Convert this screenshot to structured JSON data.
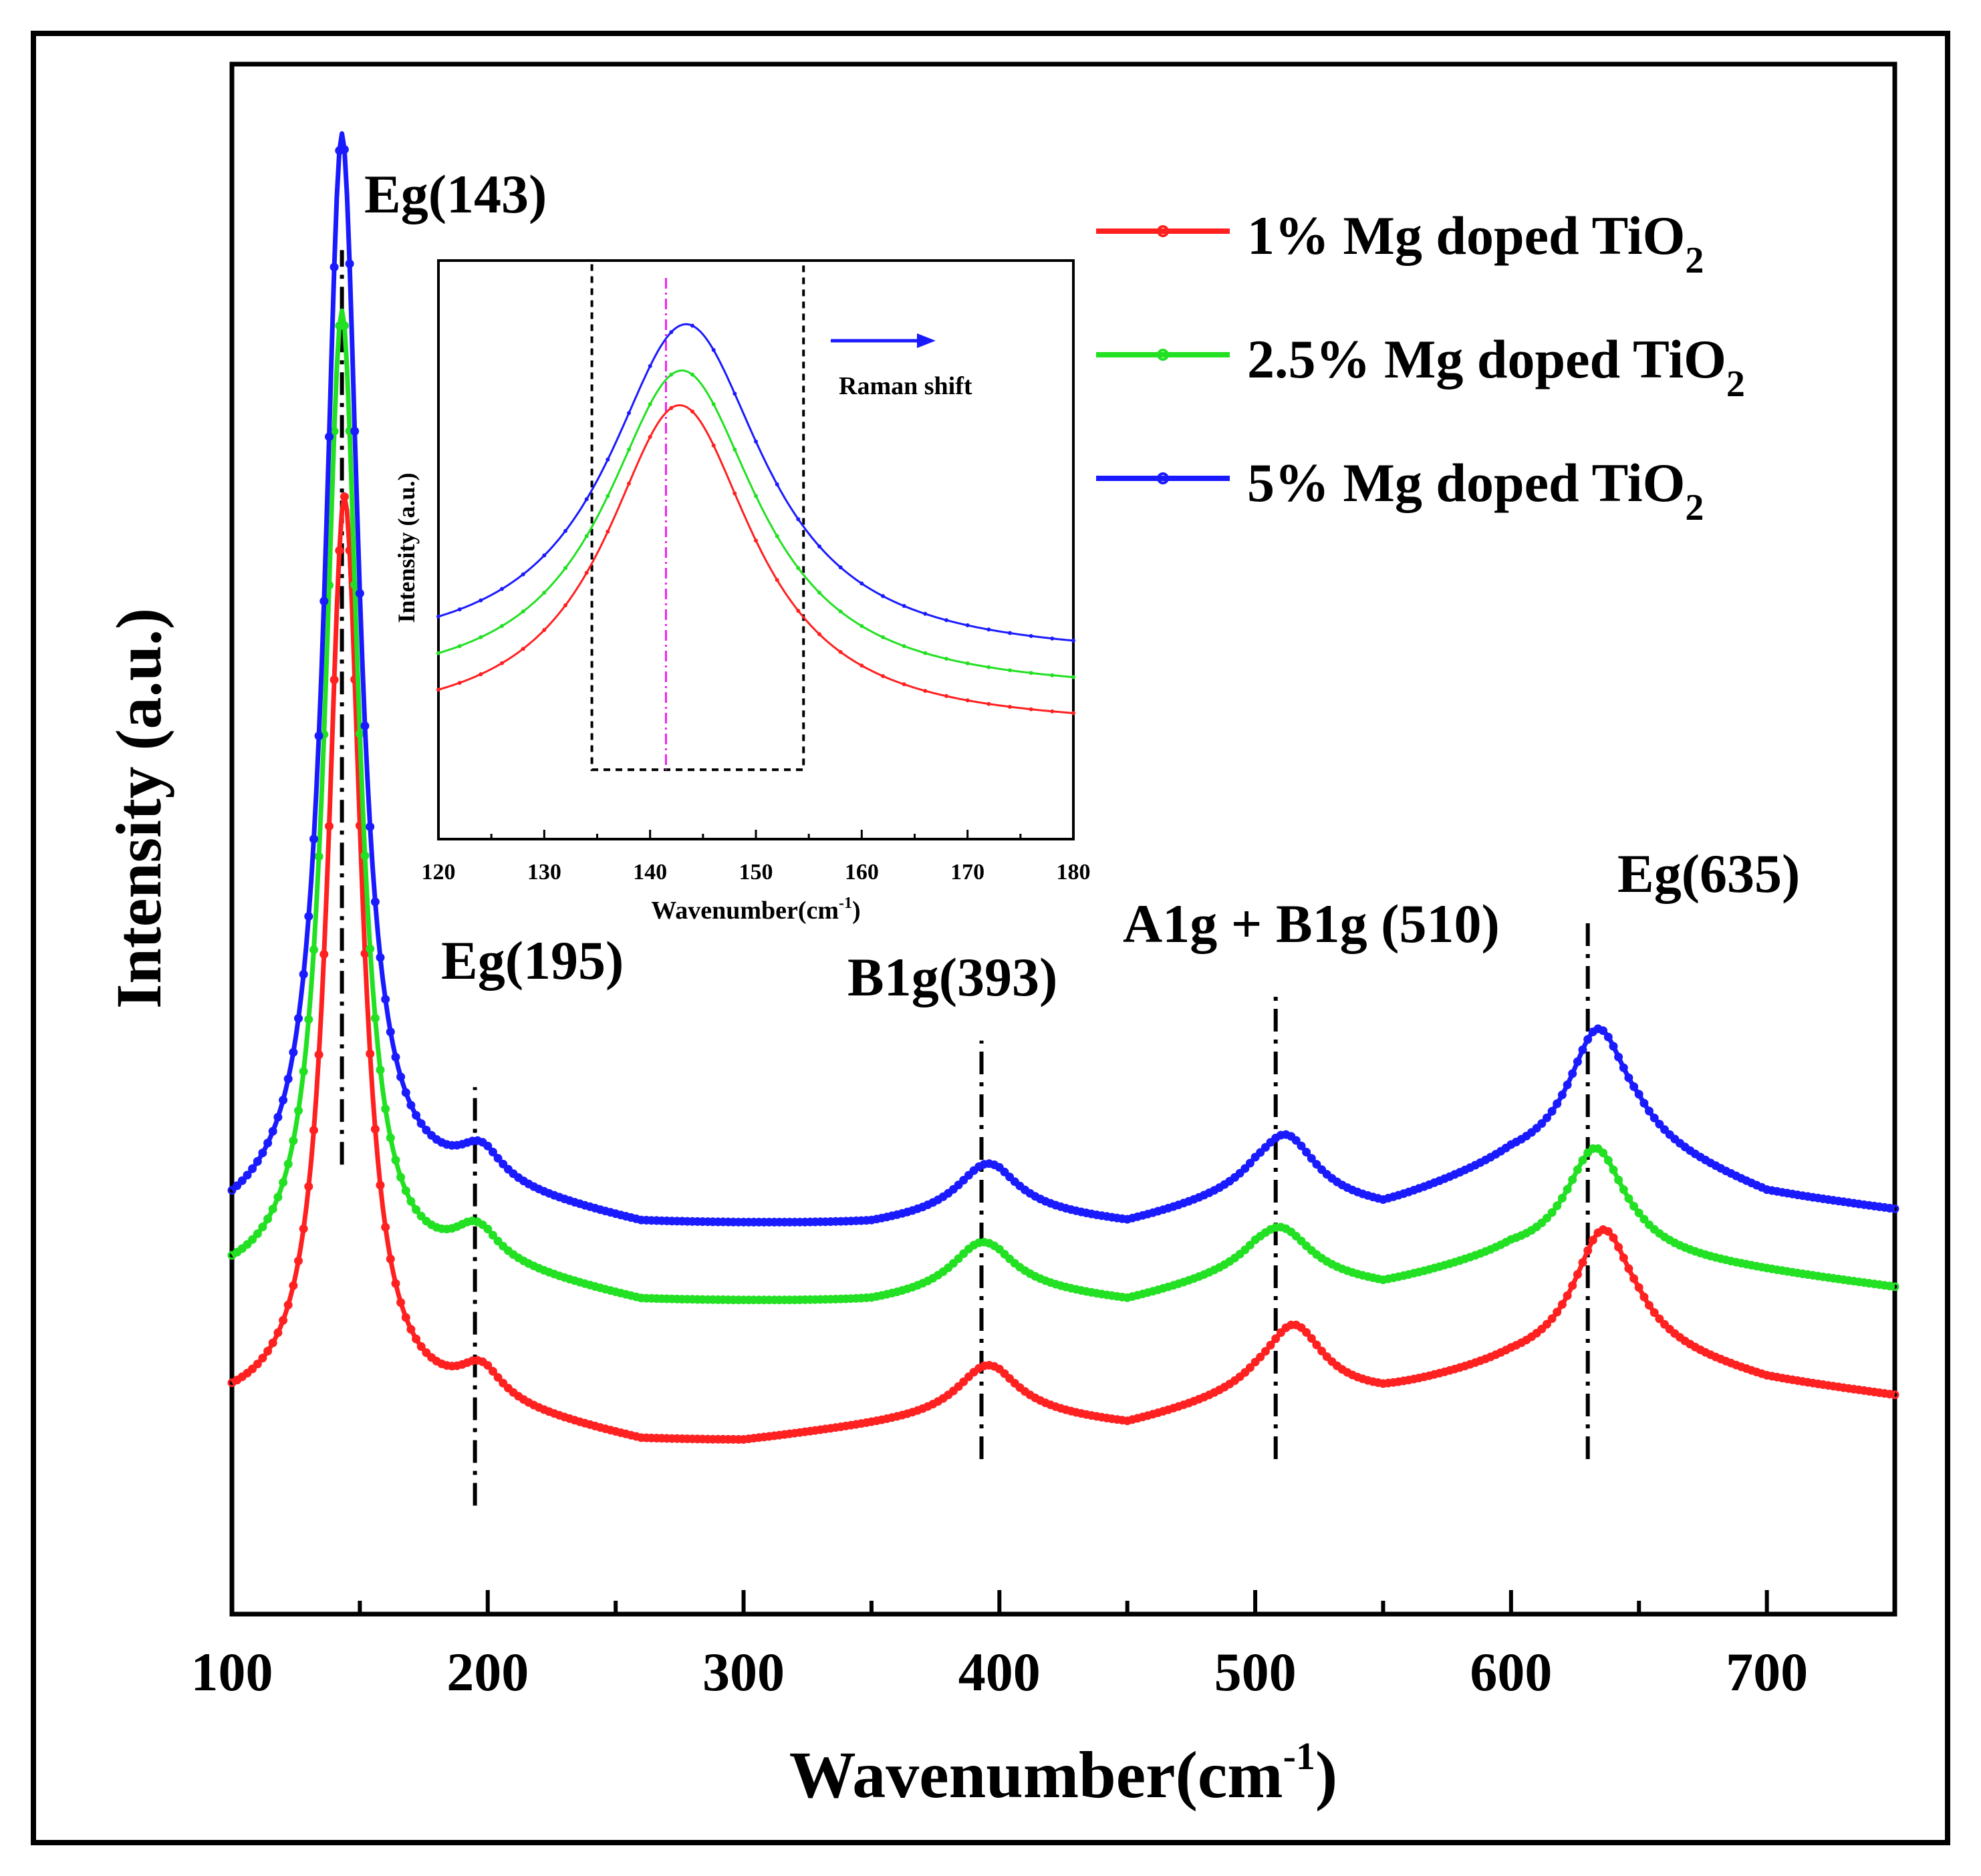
{
  "chart_data": [
    {
      "id": "main",
      "type": "line",
      "title": "",
      "xlabel": "Wavenumber(cm",
      "xlabel_sup": "-1",
      "xlabel_close": ")",
      "ylabel": "Intensity (a.u.)",
      "xlim": [
        100,
        750
      ],
      "ylim": [
        0,
        100
      ],
      "x_ticks": [
        100,
        200,
        300,
        400,
        500,
        600,
        700
      ],
      "x_tick_labels": [
        "100",
        "200",
        "300",
        "400",
        "500",
        "600",
        "700"
      ],
      "y_ticks_shown": false,
      "legend_position": "top-right",
      "series": [
        {
          "name": "1% Mg doped TiO",
          "name_sub": "2",
          "color": "#ff2020",
          "baseline": 13,
          "bg": [
            [
              100,
              0
            ],
            [
              160,
              0
            ],
            [
              200,
              0
            ],
            [
              260,
              -2
            ],
            [
              300,
              -2
            ],
            [
              350,
              -1
            ],
            [
              400,
              0
            ],
            [
              450,
              -1
            ],
            [
              500,
              1
            ],
            [
              550,
              1
            ],
            [
              600,
              3
            ],
            [
              650,
              4
            ],
            [
              700,
              2
            ],
            [
              750,
              1
            ]
          ],
          "peaks": [
            {
              "center": 144,
              "amp": 59,
              "width": 8
            },
            {
              "center": 197,
              "amp": 2,
              "width": 10
            },
            {
              "center": 395,
              "amp": 3,
              "width": 14
            },
            {
              "center": 515,
              "amp": 4.5,
              "width": 14
            },
            {
              "center": 636,
              "amp": 8,
              "width": 14
            }
          ]
        },
        {
          "name": "2.5% Mg doped TiO",
          "name_sub": "2",
          "color": "#22e022",
          "baseline": 21,
          "bg": [
            [
              100,
              0
            ],
            [
              160,
              0
            ],
            [
              200,
              1
            ],
            [
              260,
              -1
            ],
            [
              300,
              -1
            ],
            [
              350,
              -1
            ],
            [
              400,
              0
            ],
            [
              450,
              -1
            ],
            [
              500,
              1
            ],
            [
              550,
              0
            ],
            [
              600,
              2
            ],
            [
              650,
              2
            ],
            [
              700,
              1
            ],
            [
              750,
              0
            ]
          ],
          "peaks": [
            {
              "center": 143,
              "amp": 63,
              "width": 8
            },
            {
              "center": 195,
              "amp": 2,
              "width": 10
            },
            {
              "center": 393,
              "amp": 3,
              "width": 14
            },
            {
              "center": 510,
              "amp": 3,
              "width": 14
            },
            {
              "center": 633,
              "amp": 7,
              "width": 14
            }
          ]
        },
        {
          "name": "5% Mg doped TiO",
          "name_sub": "2",
          "color": "#1a1aff",
          "baseline": 25,
          "bg": [
            [
              100,
              0
            ],
            [
              160,
              2
            ],
            [
              200,
              2
            ],
            [
              260,
              0
            ],
            [
              300,
              0
            ],
            [
              350,
              0
            ],
            [
              400,
              1
            ],
            [
              450,
              0
            ],
            [
              500,
              2
            ],
            [
              550,
              1
            ],
            [
              600,
              4
            ],
            [
              650,
              5
            ],
            [
              700,
              2
            ],
            [
              750,
              1
            ]
          ],
          "peaks": [
            {
              "center": 143,
              "amp": 69,
              "width": 8
            },
            {
              "center": 197,
              "amp": 2,
              "width": 10
            },
            {
              "center": 395,
              "amp": 3,
              "width": 14
            },
            {
              "center": 512,
              "amp": 4,
              "width": 14
            },
            {
              "center": 634,
              "amp": 8,
              "width": 14
            }
          ]
        }
      ],
      "annotations": [
        {
          "label": "Eg(143)",
          "x": 143,
          "line_from": 29,
          "line_to": 88
        },
        {
          "label": "Eg(195)",
          "x": 195,
          "line_from": 7,
          "line_to": 34
        },
        {
          "label": "B1g(393)",
          "x": 393,
          "line_from": 10,
          "line_to": 37
        },
        {
          "label": "A1g + B1g (510)",
          "x": 508,
          "line_from": 10,
          "line_to": 40
        },
        {
          "label": "Eg(635)",
          "x": 630,
          "line_from": 10,
          "line_to": 45
        }
      ]
    },
    {
      "id": "inset",
      "type": "line",
      "title": "",
      "xlabel": "Wavenumber(cm",
      "xlabel_sup": "-1",
      "xlabel_close": ")",
      "ylabel": "Intensity (a.u.)",
      "xlim": [
        120,
        180
      ],
      "ylim": [
        0,
        100
      ],
      "x_ticks": [
        120,
        130,
        140,
        150,
        160,
        170,
        180
      ],
      "x_tick_labels": [
        "120",
        "130",
        "140",
        "150",
        "160",
        "170",
        "180"
      ],
      "arrow_label": "Raman shift",
      "arrow_color": "#1a1aff",
      "highlight_box": {
        "x_from": 134.5,
        "x_to": 154.5,
        "y_from": 12,
        "y_to": 100
      },
      "reference_line": {
        "x": 141.5,
        "color": "#ee22ee"
      },
      "series": [
        {
          "name": "1% Mg doped TiO2",
          "color": "#ff2020",
          "base": 19,
          "amp": 56,
          "center": 142.8,
          "width": 8.5
        },
        {
          "name": "2.5% Mg doped TiO2",
          "color": "#22e022",
          "base": 25,
          "amp": 56,
          "center": 143.0,
          "width": 8.8
        },
        {
          "name": "5% Mg doped TiO2",
          "color": "#1a1aff",
          "base": 31,
          "amp": 58,
          "center": 143.4,
          "width": 9.0
        }
      ]
    }
  ]
}
